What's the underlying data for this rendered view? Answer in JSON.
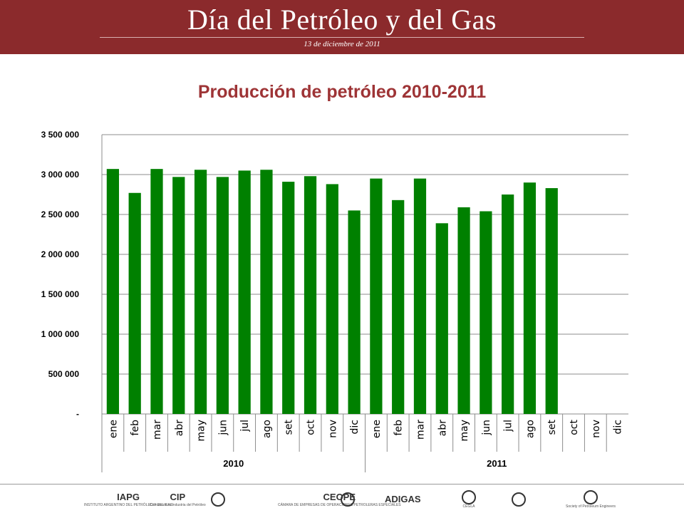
{
  "header": {
    "title": "Día del Petróleo y del Gas",
    "date": "13 de diciembre de 2011"
  },
  "colors": {
    "header_bg": "#8b2a2c",
    "title": "#9e3436",
    "bar": "#008000"
  },
  "chart_data": {
    "type": "bar",
    "title": "Producción de petróleo 2010-2011",
    "xlabel": "",
    "ylabel": "",
    "ylim": [
      0,
      3500000
    ],
    "yticks": [
      0,
      500000,
      1000000,
      1500000,
      2000000,
      2500000,
      3000000,
      3500000
    ],
    "ytick_labels": [
      "-",
      "500 000",
      "1 000 000",
      "1 500 000",
      "2 000 000",
      "2 500 000",
      "3 000 000",
      "3 500 000"
    ],
    "grid": true,
    "legend": "none",
    "groups": [
      {
        "label": "2010",
        "months": [
          "ene",
          "feb",
          "mar",
          "abr",
          "may",
          "jun",
          "jul",
          "ago",
          "set",
          "oct",
          "nov",
          "dic"
        ]
      },
      {
        "label": "2011",
        "months": [
          "ene",
          "feb",
          "mar",
          "abr",
          "may",
          "jun",
          "jul",
          "ago",
          "set",
          "oct",
          "nov",
          "dic"
        ]
      }
    ],
    "values": [
      3070000,
      2770000,
      3070000,
      2970000,
      3060000,
      2970000,
      3050000,
      3060000,
      2910000,
      2980000,
      2880000,
      2550000,
      2950000,
      2680000,
      2950000,
      2390000,
      2590000,
      2540000,
      2750000,
      2900000,
      2830000,
      null,
      null,
      null
    ]
  },
  "footer": {
    "logos": [
      {
        "name": "iapg-logo",
        "mark": "IAPG",
        "sub": "INSTITUTO ARGENTINO DEL PETRÓLEO Y DEL GAS"
      },
      {
        "name": "cip-logo",
        "mark": "CIP",
        "sub": "Cámara de la Industria del Petróleo"
      },
      {
        "name": "building-logo",
        "mark": "",
        "sub": ""
      },
      {
        "name": "ceope-logo",
        "mark": "CEOPE",
        "sub": "CÁMARA DE EMPRESAS DE OPERACIONES PETROLERAS ESPECIALES"
      },
      {
        "name": "circle-logo-1",
        "mark": "",
        "sub": ""
      },
      {
        "name": "adigas-logo",
        "mark": "ADIGAS",
        "sub": ""
      },
      {
        "name": "cegla-logo",
        "mark": "",
        "sub": "CEGLA"
      },
      {
        "name": "circle-logo-2",
        "mark": "",
        "sub": ""
      },
      {
        "name": "spe-logo",
        "mark": "",
        "sub": "Society of Petroleum Engineers"
      }
    ]
  }
}
